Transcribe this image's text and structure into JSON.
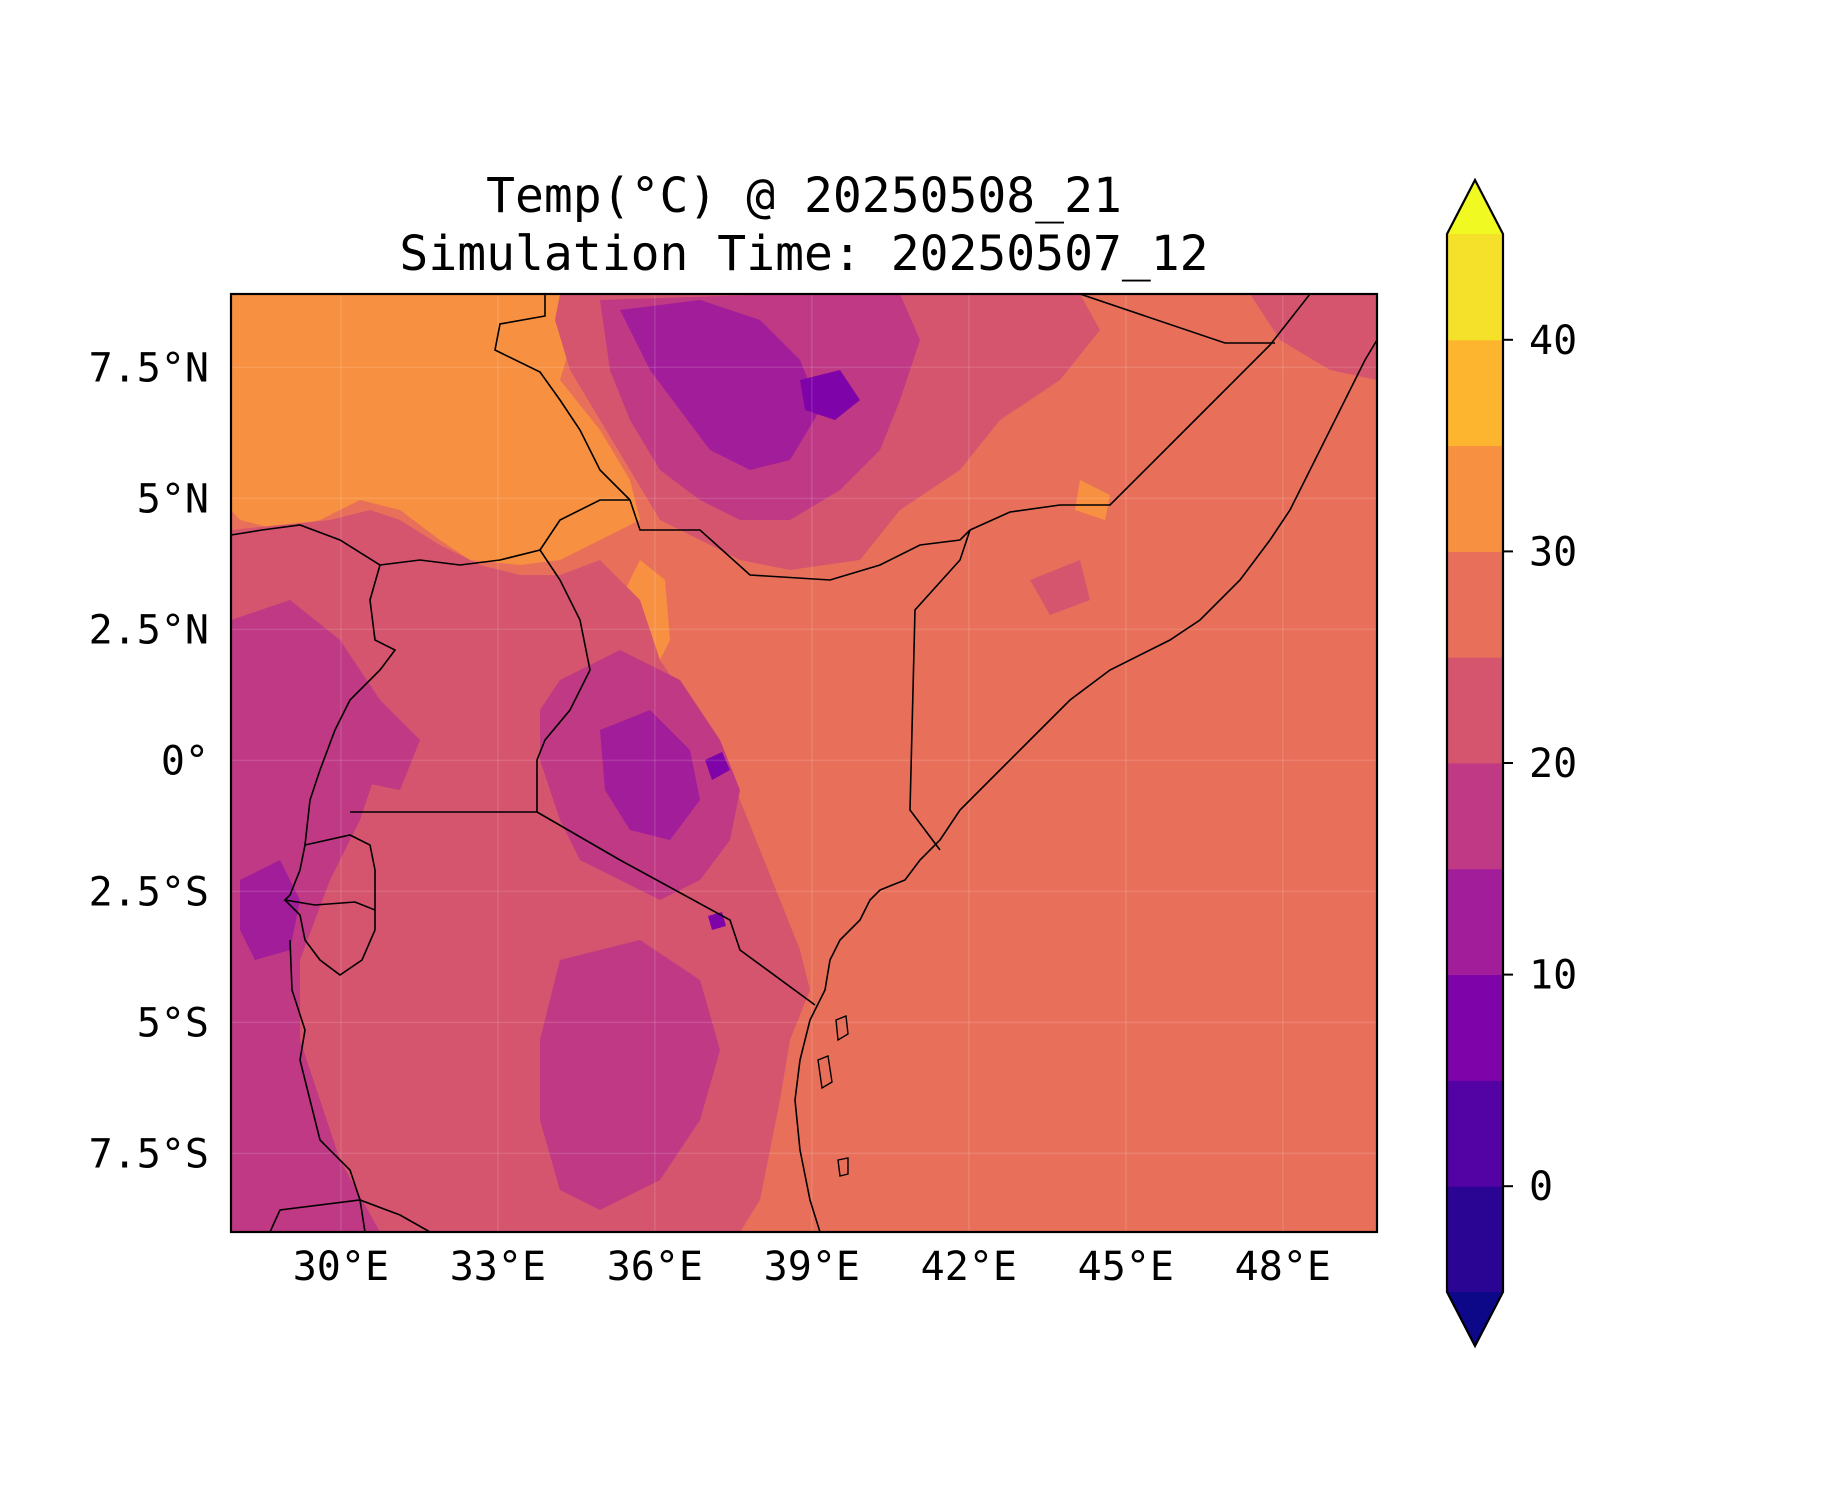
{
  "title": {
    "line1": "Temp(°C) @ 20250508_21",
    "line2": "Simulation Time: 20250507_12"
  },
  "map": {
    "region": "East Africa",
    "lon_range": [
      27.9,
      49.8
    ],
    "lat_range": [
      -9.0,
      8.9
    ],
    "x_ticks": [
      {
        "value": 30,
        "label": "30°E"
      },
      {
        "value": 33,
        "label": "33°E"
      },
      {
        "value": 36,
        "label": "36°E"
      },
      {
        "value": 39,
        "label": "39°E"
      },
      {
        "value": 42,
        "label": "42°E"
      },
      {
        "value": 45,
        "label": "45°E"
      },
      {
        "value": 48,
        "label": "48°E"
      }
    ],
    "y_ticks": [
      {
        "value": 7.5,
        "label": "7.5°N"
      },
      {
        "value": 5,
        "label": "5°N"
      },
      {
        "value": 2.5,
        "label": "2.5°N"
      },
      {
        "value": 0,
        "label": "0°"
      },
      {
        "value": -2.5,
        "label": "2.5°S"
      },
      {
        "value": -5,
        "label": "5°S"
      },
      {
        "value": -7.5,
        "label": "7.5°S"
      }
    ],
    "gridlines": true
  },
  "colorbar": {
    "min": -5,
    "max": 45,
    "extend": "both",
    "bands": [
      {
        "from": -5,
        "to": 0,
        "color": "#2a0593"
      },
      {
        "from": 0,
        "to": 5,
        "color": "#5302a3"
      },
      {
        "from": 5,
        "to": 10,
        "color": "#7e03a8"
      },
      {
        "from": 10,
        "to": 15,
        "color": "#a21d9a"
      },
      {
        "from": 15,
        "to": 20,
        "color": "#bf3984"
      },
      {
        "from": 20,
        "to": 25,
        "color": "#d5546e"
      },
      {
        "from": 25,
        "to": 30,
        "color": "#e8705a"
      },
      {
        "from": 30,
        "to": 35,
        "color": "#f79141"
      },
      {
        "from": 35,
        "to": 40,
        "color": "#fdb42e"
      },
      {
        "from": 40,
        "to": 45,
        "color": "#f6e12a"
      }
    ],
    "under_color": "#0d0887",
    "over_color": "#f0f921",
    "ticks": [
      {
        "value": 0,
        "label": "0"
      },
      {
        "value": 10,
        "label": "10"
      },
      {
        "value": 20,
        "label": "20"
      },
      {
        "value": 30,
        "label": "30"
      },
      {
        "value": 40,
        "label": "40"
      }
    ]
  },
  "colors": {
    "ocean": "#e8705a",
    "lowland_hot": "#f79141",
    "highland": "#d5546e",
    "mountain": "#bf3984",
    "peak": "#a21d9a",
    "summit": "#7e03a8",
    "borders": "#000000"
  }
}
